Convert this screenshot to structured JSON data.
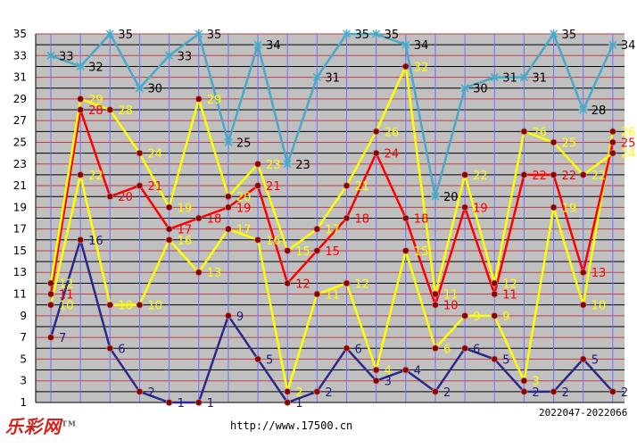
{
  "chart_data": {
    "type": "line",
    "x": [
      1,
      2,
      3,
      4,
      5,
      6,
      7,
      8,
      9,
      10,
      11,
      12,
      13,
      14,
      15,
      16,
      17,
      18,
      19,
      20
    ],
    "ylim": [
      1,
      35
    ],
    "yticks": [
      1,
      3,
      5,
      7,
      9,
      11,
      13,
      15,
      17,
      19,
      21,
      23,
      25,
      27,
      29,
      31,
      33,
      35
    ],
    "grid": true,
    "series": [
      {
        "color": "#2a2a8c",
        "label_color": "#1a1a80",
        "values": [
          7,
          16,
          6,
          2,
          1,
          1,
          9,
          5,
          1,
          2,
          6,
          3,
          4,
          2,
          6,
          5,
          2,
          2,
          5,
          2
        ]
      },
      {
        "color": "#ffff00",
        "label_color": "#ffff00",
        "values": [
          10,
          22,
          10,
          10,
          16,
          13,
          17,
          16,
          2,
          11,
          12,
          4,
          15,
          6,
          9,
          9,
          3,
          19,
          10,
          26
        ]
      },
      {
        "color": "#ff0000",
        "label_color": "#ff0000",
        "values": [
          11,
          28,
          20,
          21,
          17,
          18,
          19,
          21,
          12,
          15,
          18,
          24,
          18,
          10,
          19,
          11,
          22,
          22,
          13,
          25
        ]
      },
      {
        "color": "#ffff00",
        "label_color": "#ffff00",
        "values": [
          12,
          29,
          28,
          24,
          19,
          29,
          20,
          23,
          15,
          17,
          21,
          26,
          32,
          11,
          22,
          12,
          26,
          25,
          22,
          24
        ]
      },
      {
        "color": "#4aa8c8",
        "label_color": "#000000",
        "values": [
          33,
          32,
          35,
          30,
          33,
          35,
          25,
          34,
          23,
          31,
          35,
          35,
          34,
          20,
          30,
          31,
          31,
          35,
          28,
          34
        ]
      }
    ]
  },
  "footer": {
    "logo": "乐彩网",
    "logo_mark": "TM",
    "url": "http://www.17500.cn",
    "period": "2022047-2022066"
  },
  "colors": {
    "plot_bg": "#c0c0c0",
    "h_grid_even": "#000000",
    "h_grid_odd": "#c04040",
    "v_grid": "#7070ff",
    "axis_label": "#000000",
    "marker": "#8b0000"
  }
}
